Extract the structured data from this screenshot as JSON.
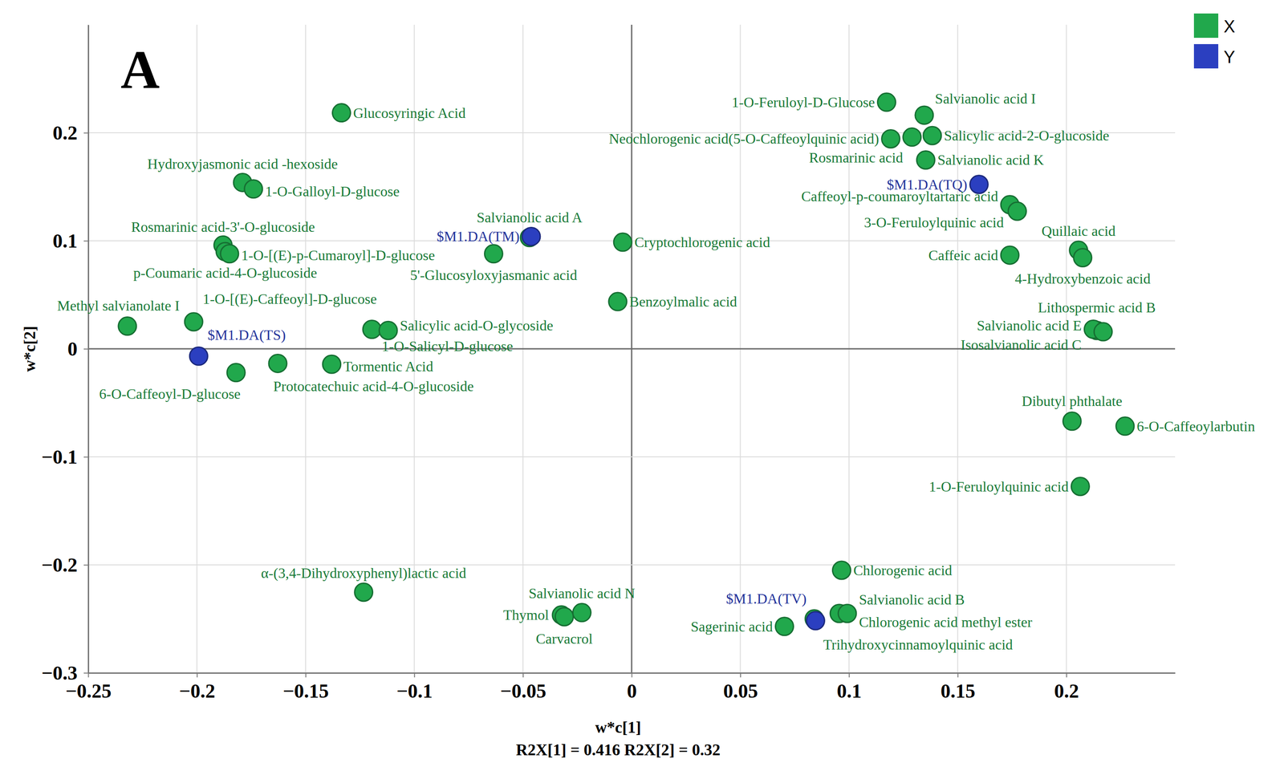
{
  "chart_data": {
    "type": "scatter",
    "title": "A",
    "x_label": "w*c[1]",
    "y_label": "w*c[2]",
    "annotations": [
      "R2X[1] = 0.416 R2X[2] = 0.32"
    ],
    "xlim": [
      -0.25,
      0.25
    ],
    "ylim": [
      -0.3,
      0.3
    ],
    "xticks": [
      {
        "value": -0.25,
        "label": "−0.25"
      },
      {
        "value": -0.2,
        "label": "−0.2"
      },
      {
        "value": -0.15,
        "label": "−0.15"
      },
      {
        "value": -0.1,
        "label": "−0.1"
      },
      {
        "value": -0.05,
        "label": "−0.05"
      },
      0,
      0.05,
      0.1,
      0.15,
      0.2
    ],
    "yticks": [
      {
        "value": -0.3,
        "label": "−0.3"
      },
      {
        "value": -0.2,
        "label": "−0.2"
      },
      {
        "value": -0.1,
        "label": "−0.1"
      },
      0,
      0.1,
      0.2
    ],
    "grid": true,
    "legend": "top-right",
    "marker": "circle",
    "series": [
      {
        "name": "X",
        "color": "#21a84c",
        "labels": [
          "Glucosyringic Acid",
          "Hydroxyjasmonic acid -hexoside",
          "1-O-Galloyl-D-glucose",
          "Rosmarinic acid-3'-O-glucoside",
          "p-Coumaric acid-4-O-glucoside",
          "1-O-[(E)-p-Cumaroyl]-D-glucose",
          "1-O-[(E)-Caffeoyl]-D-glucose",
          "Methyl salvianolate I",
          "1-O-Salicyl-D-glucose",
          "Salicylic acid-O-glycoside",
          "Protocatechuic acid-4-O-glucoside",
          "Tormentic Acid",
          "6-O-Caffeoyl-D-glucose",
          "5'-Glucosyloxyjasmanic acid",
          "Salvianolic acid A",
          "Cryptochlorogenic acid",
          "Benzoylmalic acid",
          "α-(3,4-Dihydroxyphenyl)lactic acid",
          "Thymol",
          "Carvacrol",
          "Salvianolic acid N",
          "Sagerinic acid",
          "Chlorogenic acid",
          "Salvianolic acid B",
          "Chlorogenic acid methyl ester",
          "Trihydroxycinnamoylquinic acid",
          "1-O-Feruloyl-D-Glucose",
          "Salvianolic acid I",
          "Neochlorogenic acid(5-O-Caffeoylquinic acid)",
          "Rosmarinic acid",
          "Salicylic acid-2-O-glucoside",
          "Salvianolic acid K",
          "Caffeoyl-p-coumaroyltartaric acid",
          "3-O-Feruloylquinic acid",
          "Caffeic acid",
          "Quillaic acid",
          "4-Hydroxybenzoic acid",
          "Lithospermic acid B",
          "Salvianolic acid E",
          "Isosalvianolic acid C",
          "Dibutyl phthalate",
          "6-O-Caffeoylarbutin",
          "1-O-Feruloylquinic acid"
        ],
        "x": [
          -0.1335,
          -0.179,
          -0.174,
          -0.188,
          -0.187,
          -0.185,
          -0.2015,
          -0.232,
          -0.1195,
          -0.112,
          -0.1628,
          -0.138,
          -0.182,
          -0.0635,
          -0.047,
          -0.0041,
          -0.0064,
          -0.1233,
          -0.0323,
          -0.031,
          -0.0229,
          0.0703,
          0.0966,
          0.0955,
          0.0992,
          0.084,
          0.1173,
          0.1346,
          0.1192,
          0.129,
          0.1383,
          0.1353,
          0.174,
          0.1774,
          0.174,
          0.2056,
          0.2075,
          0.214,
          0.2124,
          0.2169,
          0.2026,
          0.227,
          0.2064
        ],
        "values": [
          0.2185,
          0.154,
          0.148,
          0.096,
          0.09,
          0.088,
          0.025,
          0.021,
          0.018,
          0.017,
          -0.0135,
          -0.0143,
          -0.022,
          0.088,
          0.103,
          0.0987,
          0.0437,
          -0.2253,
          -0.2464,
          -0.248,
          -0.2442,
          -0.257,
          -0.205,
          -0.245,
          -0.245,
          -0.25,
          0.2283,
          0.2163,
          0.1944,
          0.196,
          0.1974,
          0.1748,
          0.1334,
          0.1274,
          0.0867,
          0.0912,
          0.0844,
          0.017,
          0.0181,
          0.0158,
          -0.067,
          -0.0716,
          -0.1274
        ]
      },
      {
        "name": "Y",
        "color": "#2b3fc0",
        "labels": [
          "$M1.DA(TQ)",
          "$M1.DA(TM)",
          "$M1.DA(TS)",
          "$M1.DA(TV)"
        ],
        "x": [
          0.1598,
          -0.0462,
          -0.1992,
          0.0846
        ],
        "values": [
          0.1522,
          0.104,
          -0.0068,
          -0.2517
        ]
      }
    ]
  }
}
